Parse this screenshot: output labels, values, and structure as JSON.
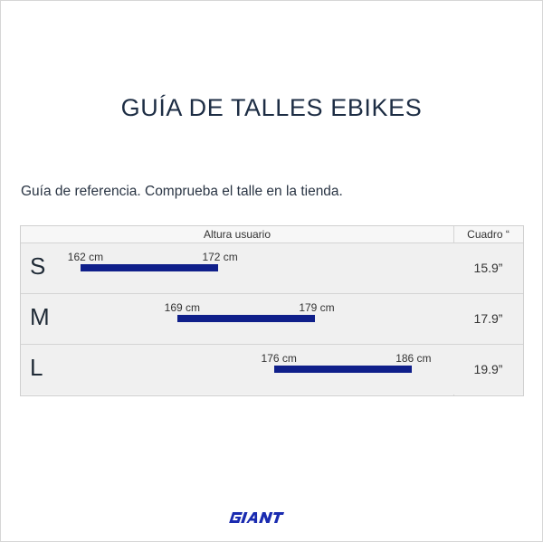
{
  "title": "GUÍA DE TALLES EBIKES",
  "subtitle": "Guía de referencia. Comprueba el talle en la tienda.",
  "table": {
    "header_height": "Altura usuario",
    "header_frame": "Cuadro “",
    "rows": [
      {
        "size": "S",
        "min_label": "162 cm",
        "max_label": "172 cm",
        "min_cm": 162,
        "max_cm": 172,
        "frame": "15.9”"
      },
      {
        "size": "M",
        "min_label": "169 cm",
        "max_label": "179 cm",
        "min_cm": 169,
        "max_cm": 179,
        "frame": "17.9”"
      },
      {
        "size": "L",
        "min_label": "176 cm",
        "max_label": "186 cm",
        "min_cm": 176,
        "max_cm": 186,
        "frame": "19.9”"
      }
    ]
  },
  "brand": {
    "name": "GIANT",
    "color": "#1a2bb0"
  },
  "colors": {
    "bar": "#0f1f8a",
    "title": "#1d2d44"
  }
}
